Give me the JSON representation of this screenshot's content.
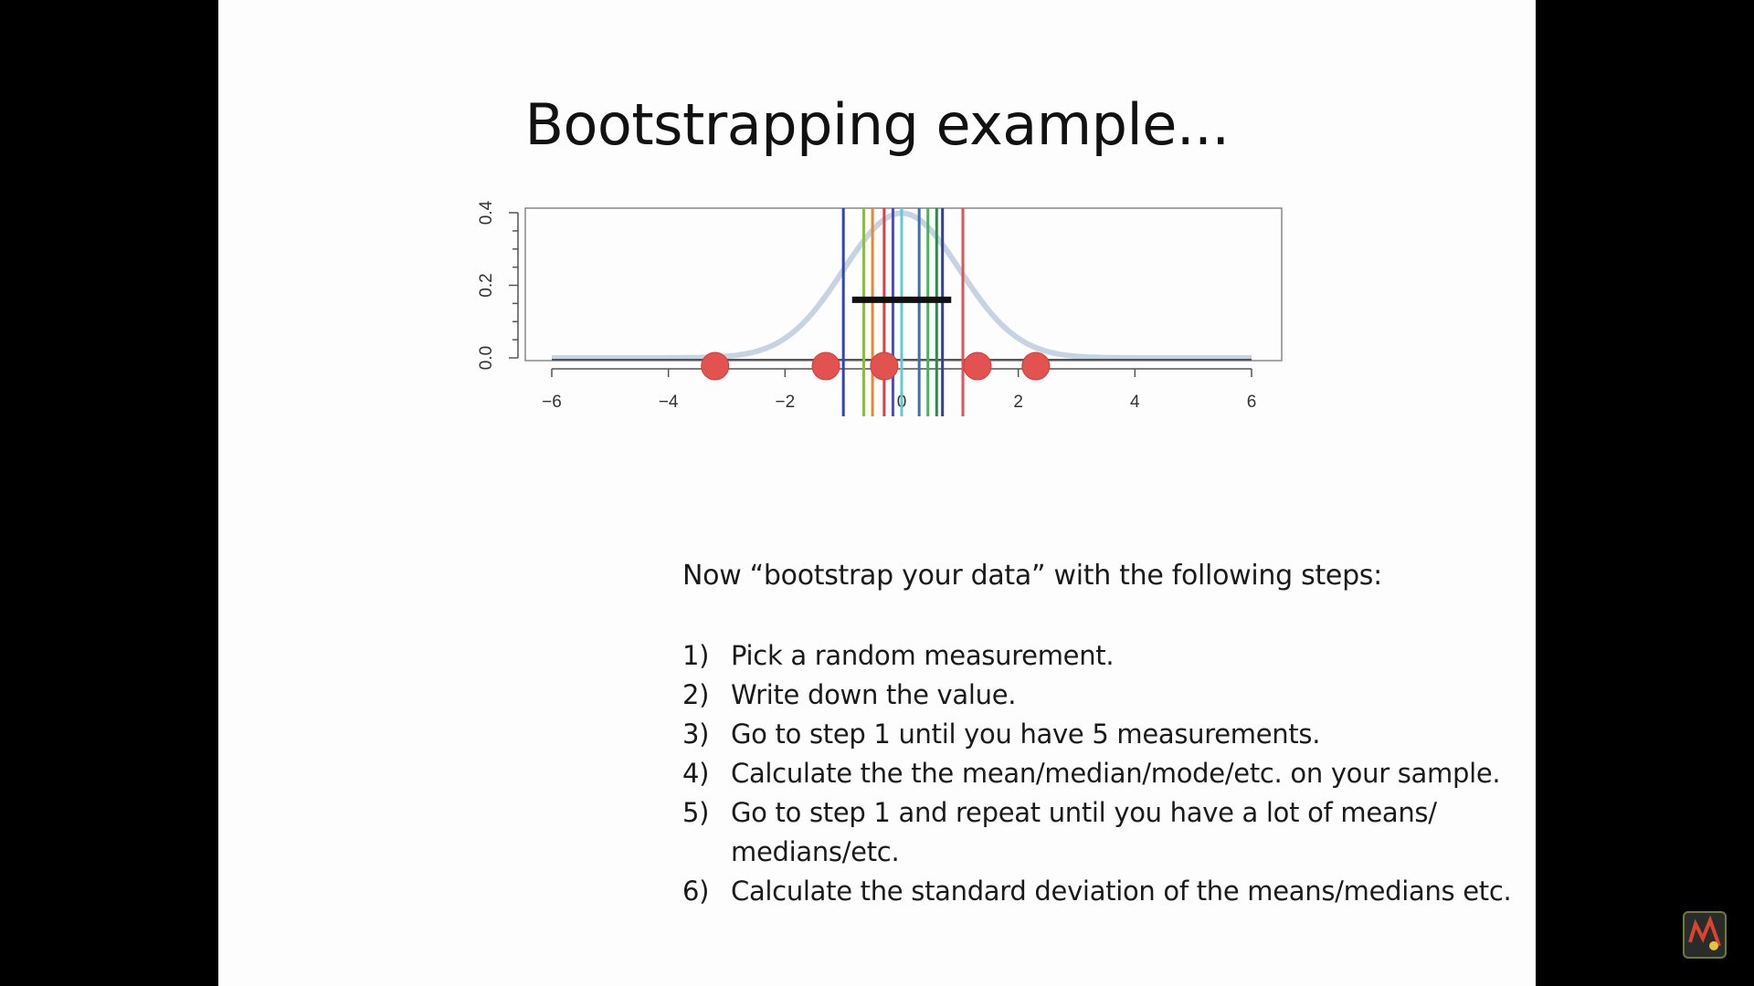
{
  "slide": {
    "title": "Bootstrapping example...",
    "intro": "Now “bootstrap your data” with the following steps:",
    "steps": [
      {
        "num": "1)",
        "text": "Pick a random measurement."
      },
      {
        "num": "2)",
        "text": "Write down the value."
      },
      {
        "num": "3)",
        "text": "Go to step 1 until you have 5 measurements."
      },
      {
        "num": "4)",
        "text": "Calculate the the mean/median/mode/etc. on your sample."
      },
      {
        "num": "5)",
        "text": "Go to step 1 and repeat until you have a lot of means/ medians/etc."
      },
      {
        "num": "6)",
        "text": "Calculate the standard deviation of the means/medians etc."
      }
    ]
  },
  "chart_data": {
    "type": "scatter",
    "title": "",
    "xlabel": "",
    "ylabel": "",
    "xlim": [
      -6,
      6
    ],
    "ylim": [
      0,
      0.4
    ],
    "x_ticks": [
      "−6",
      "−4",
      "−2",
      "0",
      "2",
      "4",
      "6"
    ],
    "y_ticks": [
      "0.0",
      "0.2",
      "0.4"
    ],
    "density_curve": {
      "distribution": "standard normal",
      "color": "#c5d3e3"
    },
    "measurements": [
      -3.2,
      -1.3,
      -0.3,
      1.3,
      2.3
    ],
    "measurement_color": "#e2524f",
    "bootstrap_means": [
      {
        "value": -1.0,
        "color": "#2f45b5"
      },
      {
        "value": -0.65,
        "color": "#8dbb4a"
      },
      {
        "value": -0.5,
        "color": "#e08a3a"
      },
      {
        "value": -0.3,
        "color": "#d04545"
      },
      {
        "value": -0.15,
        "color": "#4a4fb0"
      },
      {
        "value": 0.0,
        "color": "#5ec9d8"
      },
      {
        "value": 0.3,
        "color": "#3a6fc0"
      },
      {
        "value": 0.45,
        "color": "#4fae5b"
      },
      {
        "value": 0.6,
        "color": "#2e8a48"
      },
      {
        "value": 0.7,
        "color": "#3a3f8a"
      },
      {
        "value": 1.05,
        "color": "#e05353"
      }
    ],
    "interval": {
      "low": -0.85,
      "high": 0.85,
      "y": 0.16
    }
  }
}
